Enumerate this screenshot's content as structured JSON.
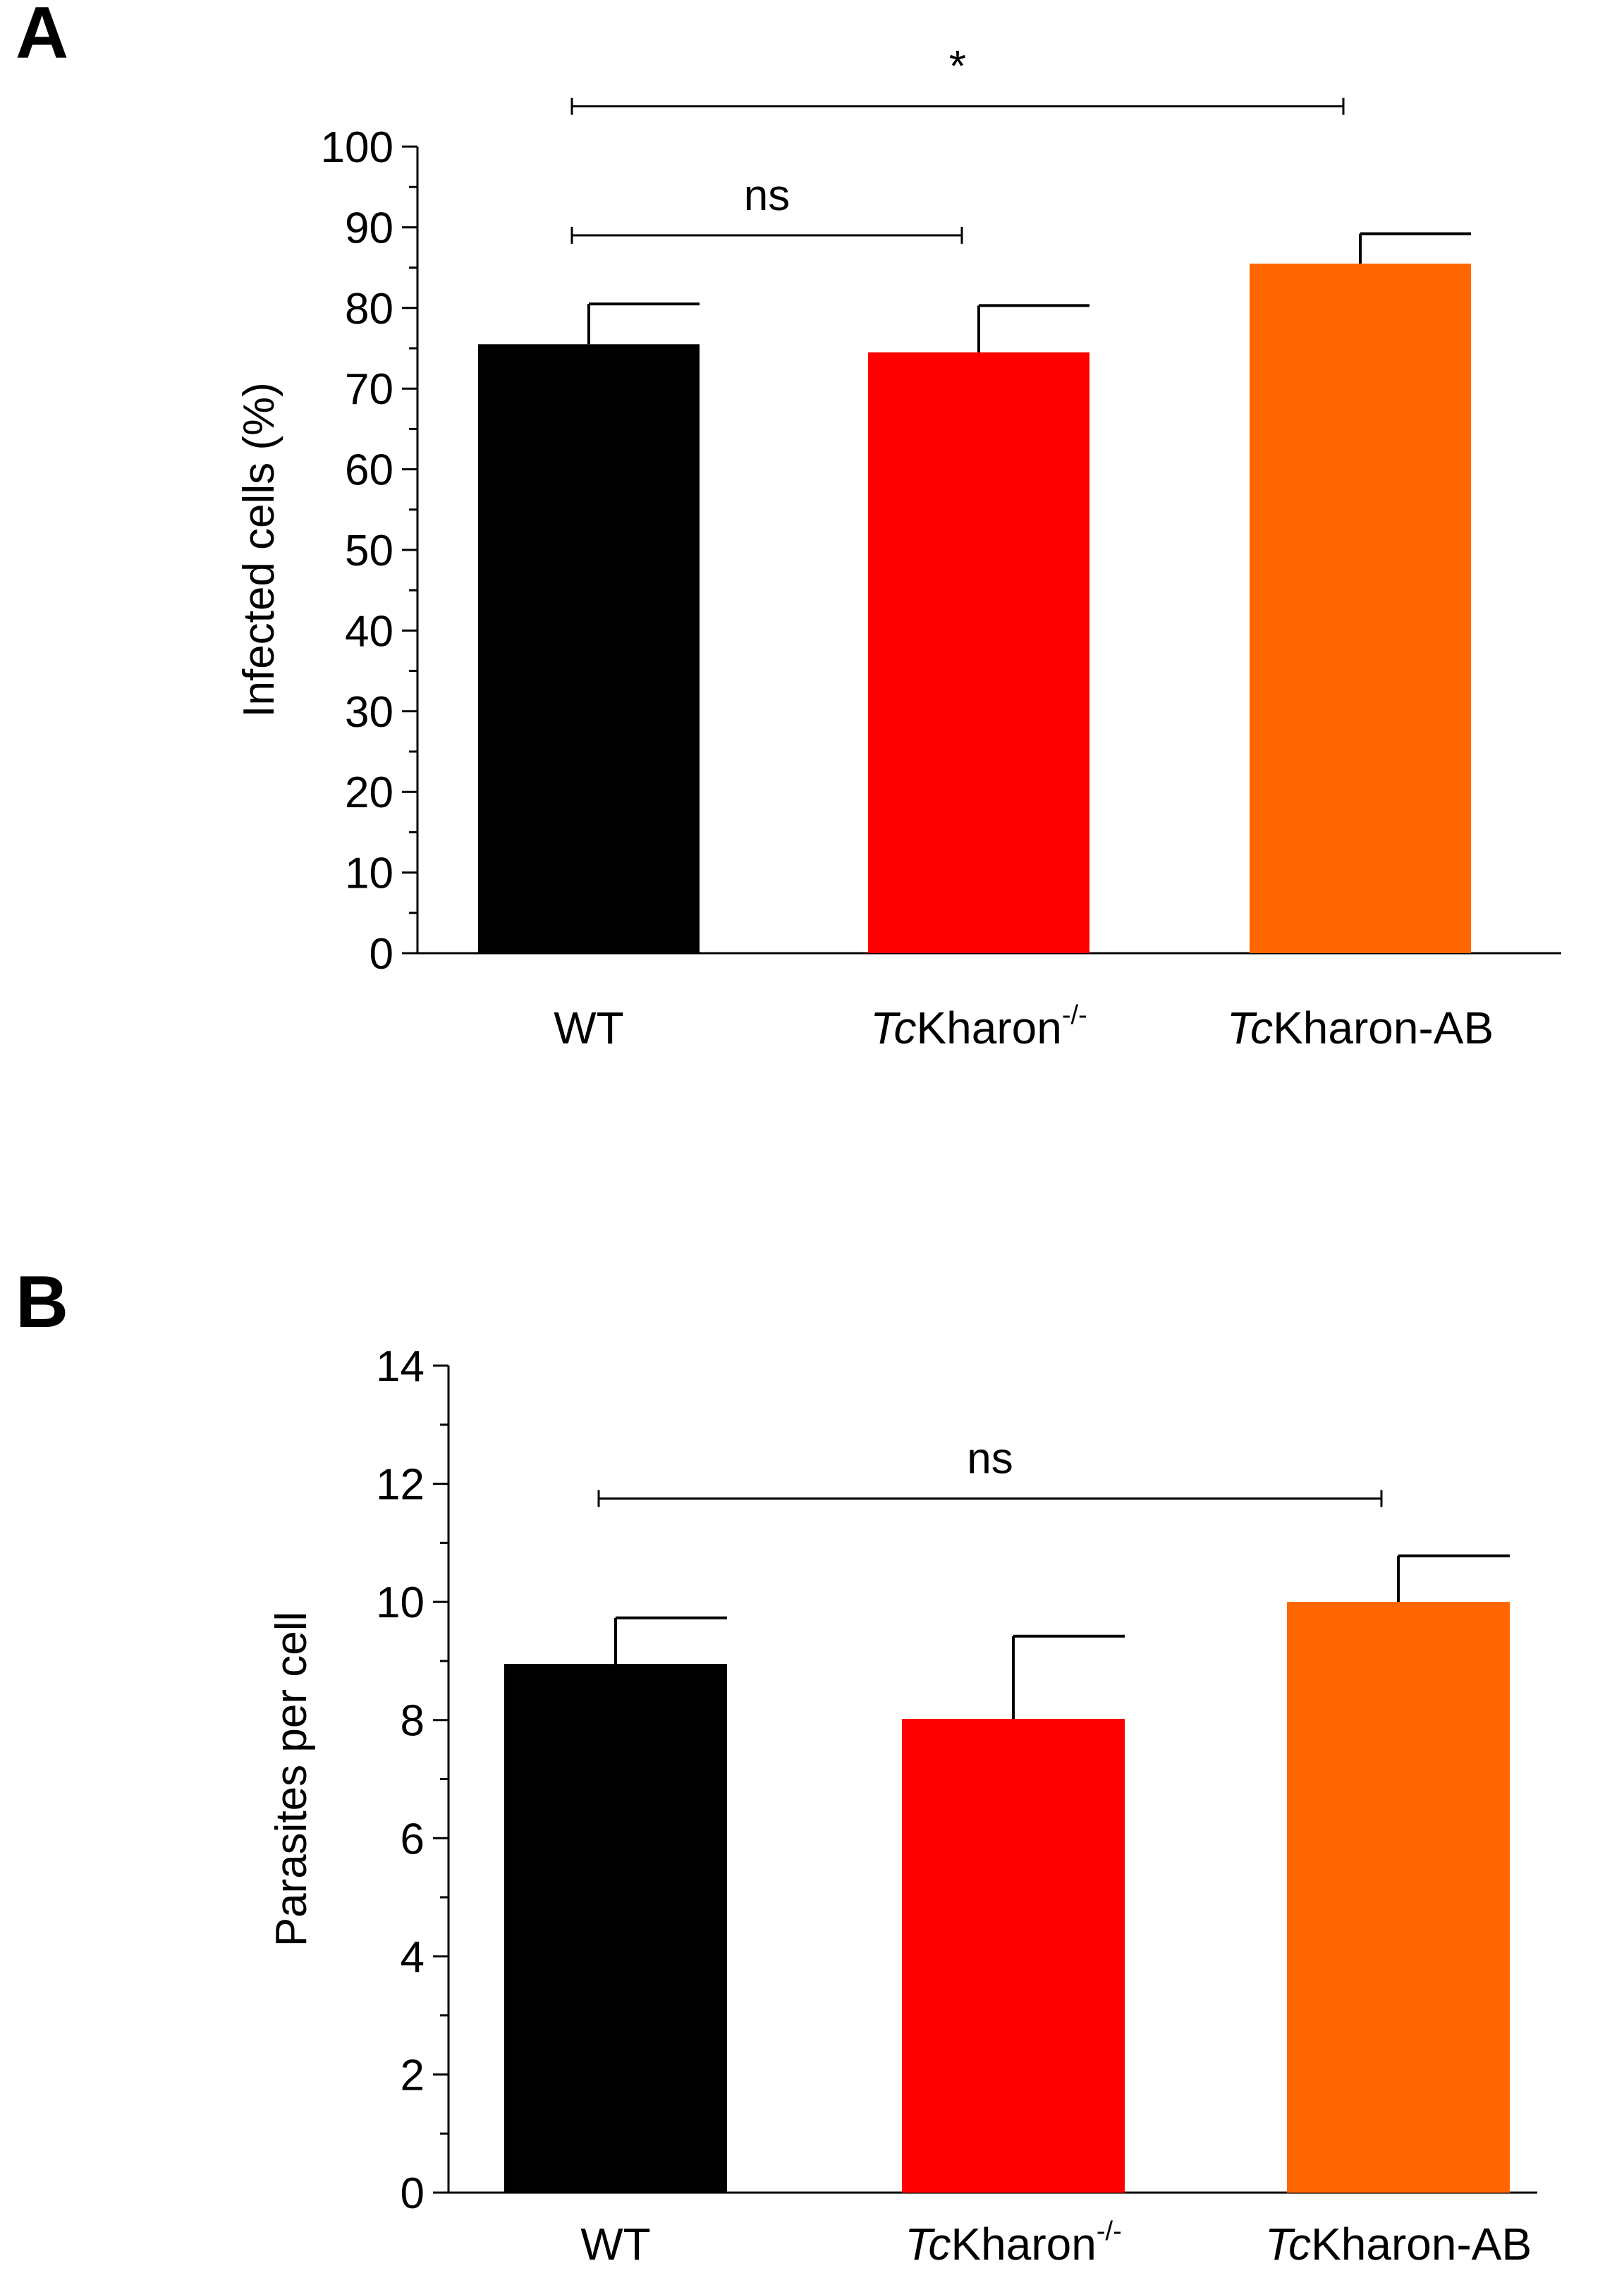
{
  "figure": {
    "background": "#ffffff"
  },
  "chart_data": [
    {
      "panel": "A",
      "type": "bar",
      "title": "",
      "xlabel": "",
      "ylabel": "Infected cells (%)",
      "ylim": [
        0,
        100
      ],
      "major_ticks": [
        0,
        10,
        20,
        30,
        40,
        50,
        60,
        70,
        80,
        90,
        100
      ],
      "minor_step": 5,
      "grid": false,
      "categories": [
        {
          "name": "WT",
          "italic": "",
          "rest": "WT",
          "sup": "",
          "value": 75.5,
          "error": 5.0,
          "color": "#000000"
        },
        {
          "name": "TcKharon-/-",
          "italic": "Tc",
          "rest": "Kharon",
          "sup": "-/-",
          "value": 74.5,
          "error": 5.8,
          "color": "#ff0000"
        },
        {
          "name": "TcKharon-AB",
          "italic": "Tc",
          "rest": "Kharon-AB",
          "sup": "",
          "value": 85.5,
          "error": 3.7,
          "color": "#ff6600"
        }
      ],
      "significance": [
        {
          "from": 0,
          "to": 1,
          "label": "ns",
          "y": 89
        },
        {
          "from": 0,
          "to": 2,
          "label": "*",
          "y": 105
        }
      ]
    },
    {
      "panel": "B",
      "type": "bar",
      "title": "",
      "xlabel": "",
      "ylabel": "Parasites per cell",
      "ylim": [
        0,
        14
      ],
      "major_ticks": [
        0,
        2,
        4,
        6,
        8,
        10,
        12,
        14
      ],
      "minor_step": 1,
      "grid": false,
      "categories": [
        {
          "name": "WT",
          "italic": "",
          "rest": "WT",
          "sup": "",
          "value": 8.95,
          "error": 0.78,
          "color": "#000000"
        },
        {
          "name": "TcKharon-/-",
          "italic": "Tc",
          "rest": "Kharon",
          "sup": "-/-",
          "value": 8.02,
          "error": 1.4,
          "color": "#ff0000"
        },
        {
          "name": "TcKharon-AB",
          "italic": "Tc",
          "rest": "Kharon-AB",
          "sup": "",
          "value": 10.0,
          "error": 0.78,
          "color": "#ff6600"
        }
      ],
      "significance": [
        {
          "from": 0,
          "to": 2,
          "label": "ns",
          "y": 11.75
        }
      ]
    }
  ]
}
